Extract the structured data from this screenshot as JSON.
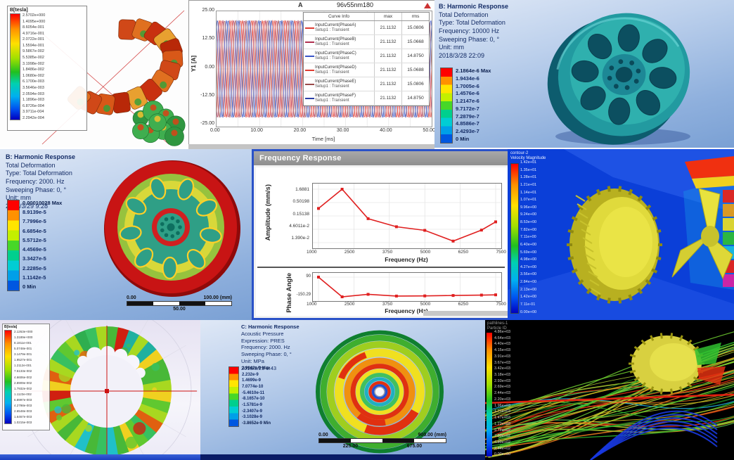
{
  "panel_a": {
    "legend_title": "B[tesla]",
    "values": [
      "2.5702e+000",
      "1.4095e+000",
      "8.6054e-001",
      "4.9716e-001",
      "2.0722e-001",
      "1.5594e-001",
      "9.5867e-002",
      "5.5385e-002",
      "3.1998e-002",
      "1.8486e-002",
      "1.0680e-002",
      "6.1700e-003",
      "3.5646e-003",
      "2.0594e-003",
      "1.1896e-003",
      "6.8726e-004",
      "3.9711e-004",
      "2.2942e-004"
    ]
  },
  "panel_b": {
    "corner_label": "A",
    "title": "96v55nm180",
    "legend_header": [
      "Curve Info",
      "max",
      "rms"
    ],
    "xlabel": "Time [ms]",
    "ylabel": "Y1 [A]",
    "xticks": [
      "0.00",
      "10.00",
      "20.00",
      "30.00",
      "40.00",
      "50.00"
    ],
    "yticks": [
      "25.00",
      "12.50",
      "0.00",
      "-12.50",
      "-25.00"
    ]
  },
  "panel_c": {
    "header": [
      "B: Harmonic Response",
      "Total Deformation",
      "Type: Total Deformation",
      "Frequency: 10000 Hz",
      "Sweeping Phase: 0, °",
      "Unit: mm",
      "2018/3/28 22:09"
    ],
    "colorbar": [
      "2.1864e-6 Max",
      "1.9434e-6",
      "1.7005e-6",
      "1.4576e-6",
      "1.2147e-6",
      "9.7172e-7",
      "7.2879e-7",
      "4.8586e-7",
      "2.4293e-7",
      "0 Min"
    ]
  },
  "panel_d": {
    "header": [
      "B: Harmonic Response",
      "Total Deformation",
      "Type: Total Deformation",
      "Frequency: 2000. Hz",
      "Sweeping Phase: 0, °",
      "Unit: mm",
      "2018/3/29 9:28"
    ],
    "colorbar": [
      "0.00010028 Max",
      "8.9139e-5",
      "7.7996e-5",
      "6.6854e-5",
      "5.5712e-5",
      "4.4569e-5",
      "3.3427e-5",
      "2.2285e-5",
      "1.1142e-5",
      "0 Min"
    ],
    "scalebar": {
      "left": "0.00",
      "right": "100.00 (mm)",
      "below": "50.00"
    }
  },
  "panel_e": {
    "window_title": "Frequency Response",
    "amp_ylabel": "Amplitude (mm/s)",
    "phase_ylabel": "Phase Angle",
    "xlabel": "Frequency (Hz)"
  },
  "panel_f": {
    "header": [
      "contour-2",
      "Velocity Magnitude"
    ],
    "values": [
      "1.42e+01",
      "1.35e+01",
      "1.28e+01",
      "1.21e+01",
      "1.14e+01",
      "1.07e+01",
      "9.96e+00",
      "9.24e+00",
      "8.53e+00",
      "7.82e+00",
      "7.11e+00",
      "6.40e+00",
      "5.69e+00",
      "4.98e+00",
      "4.27e+00",
      "3.56e+00",
      "2.84e+00",
      "2.13e+00",
      "1.42e+00",
      "7.11e-01",
      "0.00e+00"
    ],
    "bg_color": "#0b3fd8"
  },
  "panel_g": {
    "legend_title": "B[tesla]",
    "values": [
      "2.1263e+000",
      "1.3189e+000",
      "8.1811e-001",
      "5.0748e-001",
      "3.1479e-001",
      "1.9527e-001",
      "1.2112e-001",
      "7.5133e-002",
      "4.6606e-002",
      "2.8909e-002",
      "1.7932e-002",
      "1.1123e-002",
      "6.8997e-003",
      "4.2798e-003",
      "2.6548e-003",
      "1.6467e-003",
      "1.0215e-003"
    ]
  },
  "panel_h": {
    "header": [
      "C: Harmonic Response",
      "Acoustic Pressure",
      "Expression: PRES",
      "Frequency: 2000. Hz",
      "Sweeping Phase: 0, °",
      "Unit: MPa",
      "2018/3/29 9:43"
    ],
    "colorbar": [
      "2.9942e-9 Max",
      "2.232e-9",
      "1.4699e-9",
      "7.0774e-10",
      "-5.4610e-11",
      "-8.1657e-10",
      "-1.5781e-9",
      "-2.3407e-9",
      "-3.1028e-9",
      "-3.8652e-9 Min"
    ],
    "scalebar": {
      "left": "0.00",
      "right": "900.00 (mm)",
      "below1": "225.00",
      "below2": "675.00"
    }
  },
  "panel_i": {
    "header": [
      "pathlines-1",
      "Particle ID"
    ],
    "values": [
      "4.86e+03",
      "4.64e+03",
      "4.40e+03",
      "4.15e+03",
      "3.91e+03",
      "3.67e+03",
      "3.42e+03",
      "3.18e+03",
      "2.93e+03",
      "2.69e+03",
      "2.44e+03",
      "2.20e+03",
      "1.96e+03",
      "1.71e+03",
      "1.47e+03",
      "1.22e+03",
      "9.78e+02",
      "7.33e+02",
      "4.89e+02",
      "2.44e+02",
      "0.00e+00"
    ]
  },
  "chart_data": [
    {
      "id": "transient_currents",
      "type": "line",
      "title": "96v55nm180",
      "xlabel": "Time [ms]",
      "ylabel": "Y1 [A]",
      "xlim": [
        0,
        50
      ],
      "ylim": [
        -25,
        25
      ],
      "xticks": [
        "0.00",
        "10.00",
        "20.00",
        "30.00",
        "40.00",
        "50.00"
      ],
      "yticks": [
        "25.00",
        "12.50",
        "0.00",
        "-12.50",
        "-25.00"
      ],
      "waveform": {
        "kind": "sine",
        "amplitude": 21.1132,
        "frequency_hz": 400,
        "duration_ms": 50
      },
      "series": [
        {
          "name": "InputCurrent(PhaseA)",
          "setup": "Setup1 : Transient",
          "max": "21.1132",
          "rms": "15.0806",
          "color": "#e03c31",
          "phase_deg": 0
        },
        {
          "name": "InputCurrent(PhaseB)",
          "setup": "Setup1 : Transient",
          "max": "21.1132",
          "rms": "15.0668",
          "color": "#b03050",
          "phase_deg": 120
        },
        {
          "name": "InputCurrent(PhaseC)",
          "setup": "Setup1 : Transient",
          "max": "21.1132",
          "rms": "14.8750",
          "color": "#3a55c8",
          "phase_deg": 240
        },
        {
          "name": "InputCurrent(PhaseD)",
          "setup": "Setup1 : Transient",
          "max": "21.1132",
          "rms": "15.0688",
          "color": "#e03c31",
          "phase_deg": 60
        },
        {
          "name": "InputCurrent(PhaseE)",
          "setup": "Setup1 : Transient",
          "max": "21.1132",
          "rms": "15.0806",
          "color": "#9a4a4a",
          "phase_deg": 180
        },
        {
          "name": "InputCurrent(PhaseF)",
          "setup": "Setup1 : Transient",
          "max": "21.1132",
          "rms": "14.8750",
          "color": "#2a3fa8",
          "phase_deg": 300
        }
      ],
      "legend_position": "upper right",
      "grid": true
    },
    {
      "id": "frequency_response_amplitude",
      "type": "line",
      "ylabel": "Amplitude (mm/s)",
      "xlabel": "Frequency (Hz)",
      "yscale": "log",
      "x": [
        1000,
        2000,
        3000,
        4000,
        5000,
        6000,
        7000,
        7500
      ],
      "y": [
        0.3,
        1.6881,
        0.12,
        0.058,
        0.042,
        0.016,
        0.043,
        0.09
      ],
      "yticks": [
        "1.6881",
        "0.50198",
        "0.15138",
        "4.6011e-2",
        "1.390e-2"
      ],
      "xticks": [
        "1000",
        "2500",
        "3750",
        "5000",
        "6250",
        "7500"
      ],
      "color": "#e02020",
      "grid": true
    },
    {
      "id": "frequency_response_phase",
      "type": "line",
      "ylabel": "Phase Angle",
      "xlabel": "Frequency (Hz)",
      "x": [
        1000,
        2000,
        3000,
        4000,
        5000,
        6000,
        7000,
        7500
      ],
      "y": [
        90,
        -150.29,
        -120,
        -141,
        -139,
        -134,
        -129,
        -126
      ],
      "yticks": [
        "90",
        "-150.29"
      ],
      "xticks": [
        "1000",
        "2500",
        "3750",
        "5000",
        "6250",
        "7500"
      ],
      "color": "#e02020",
      "grid": true
    }
  ]
}
